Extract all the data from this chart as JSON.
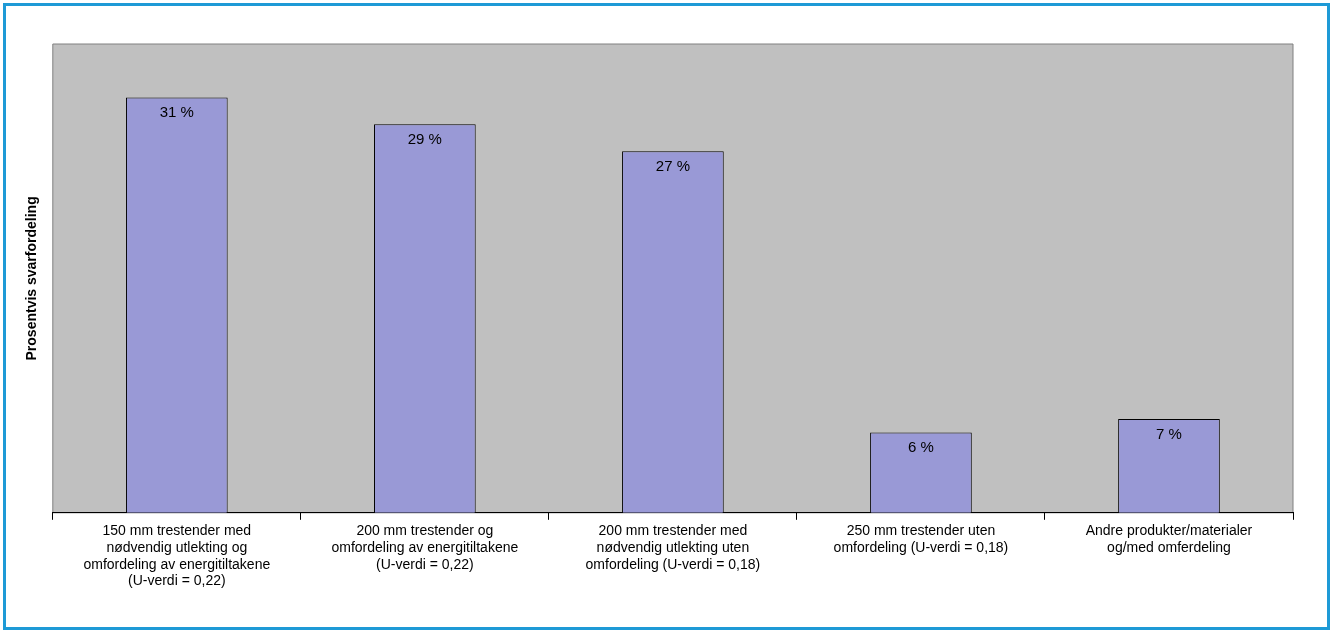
{
  "chart_data": {
    "type": "bar",
    "ylabel": "Prosentvis svarfordeling",
    "categories": [
      "150 mm trestender med nødvendig utlekting og omfordeling av energitiltakene (U-verdi = 0,22)",
      "200 mm trestender og omfordeling av energitiltakene (U-verdi = 0,22)",
      "200 mm trestender med nødvendig utlekting uten omfordeling (U-verdi = 0,18)",
      "250 mm trestender uten omfordeling (U-verdi = 0,18)",
      "Andre produkter/materialer og/med omferdeling"
    ],
    "values": [
      31,
      29,
      27,
      6,
      7
    ],
    "value_labels": [
      "31 %",
      "29 %",
      "27 %",
      "6 %",
      "7 %"
    ],
    "color": "#9999d6",
    "grid": false,
    "legend": false
  }
}
